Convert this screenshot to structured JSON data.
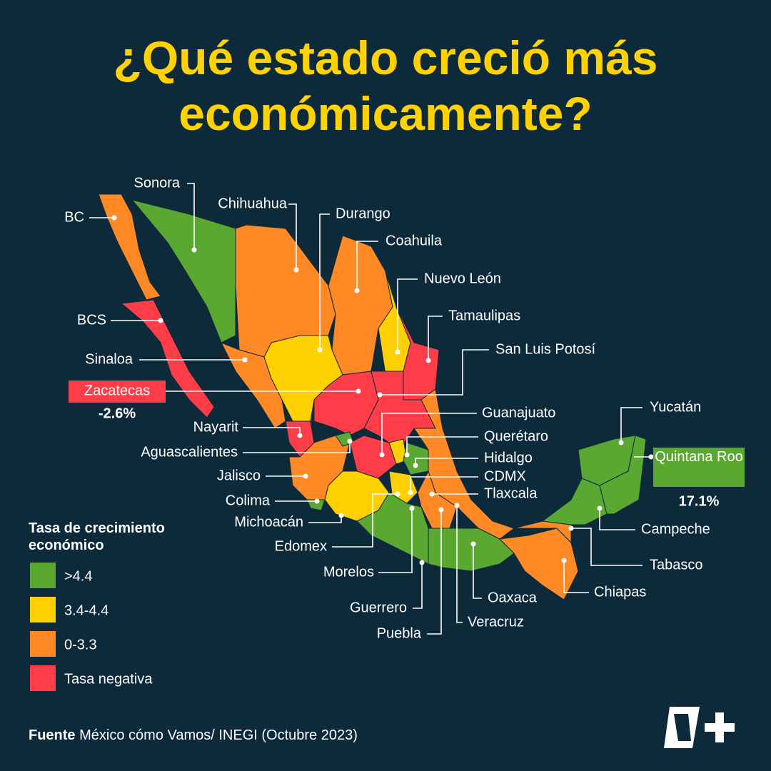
{
  "header": {
    "title": "¿Qué estado creció más económicamente?"
  },
  "states": [
    {
      "name": "Sonora"
    },
    {
      "name": "Chihuahua"
    },
    {
      "name": "Durango"
    },
    {
      "name": "Coahuila"
    },
    {
      "name": "Nuevo León"
    },
    {
      "name": "Tamaulipas"
    },
    {
      "name": "San Luis Potosí"
    },
    {
      "name": "BC"
    },
    {
      "name": "BCS"
    },
    {
      "name": "Sinaloa"
    },
    {
      "name": "Zacatecas",
      "growth": "-2.6%"
    },
    {
      "name": "Nayarit"
    },
    {
      "name": "Guanajuato"
    },
    {
      "name": "Aguascalientes"
    },
    {
      "name": "Querétaro"
    },
    {
      "name": "Jalisco"
    },
    {
      "name": "Hidalgo"
    },
    {
      "name": "CDMX"
    },
    {
      "name": "Colima"
    },
    {
      "name": "Tlaxcala"
    },
    {
      "name": "Michoacán"
    },
    {
      "name": "Edomex"
    },
    {
      "name": "Morelos"
    },
    {
      "name": "Guerrero"
    },
    {
      "name": "Puebla"
    },
    {
      "name": "Veracruz"
    },
    {
      "name": "Oaxaca"
    },
    {
      "name": "Chiapas"
    },
    {
      "name": "Tabasco"
    },
    {
      "name": "Campeche"
    },
    {
      "name": "Yucatán"
    },
    {
      "name": "Quintana Roo",
      "growth": "17.1%"
    }
  ],
  "legend": {
    "title": "Tasa de crecimiento económico",
    "items": [
      {
        "label": ">4.4",
        "color": "#5aa832"
      },
      {
        "label": "3.4-4.4",
        "color": "#ffd000"
      },
      {
        "label": "0-3.3",
        "color": "#ff8a25"
      },
      {
        "label": "Tasa negativa",
        "color": "#ff3d48"
      }
    ]
  },
  "footer": {
    "source_label": "Fuente",
    "source": "México cómo Vamos/ INEGI (Octubre 2023)"
  }
}
